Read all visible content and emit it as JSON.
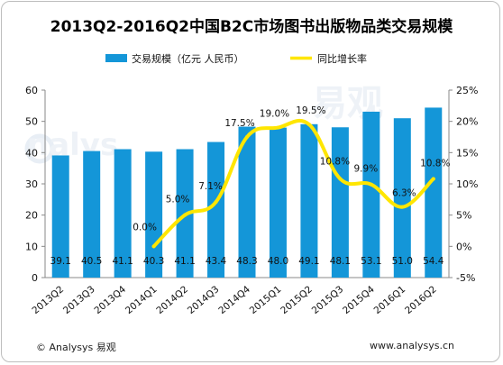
{
  "title": "2013Q2-2016Q2中国B2C市场图书出版物品类交易规模",
  "footer": {
    "copyright": "© Analysys 易观",
    "website": "www.analysys.cn"
  },
  "watermark": {
    "brand": "易观",
    "logo_text": "nalys"
  },
  "colors": {
    "bar": "#1496d8",
    "line": "#ffe600",
    "axis": "#888888"
  },
  "chart_data": {
    "type": "bar",
    "categories": [
      "2013Q2",
      "2013Q3",
      "2013Q4",
      "2014Q1",
      "2014Q2",
      "2014Q3",
      "2014Q4",
      "2015Q1",
      "2015Q2",
      "2015Q3",
      "2015Q4",
      "2016Q1",
      "2016Q2"
    ],
    "series": [
      {
        "name": "交易规模（亿元 人民币）",
        "type": "bar",
        "axis": "left",
        "values": [
          39.1,
          40.5,
          41.1,
          40.3,
          41.1,
          43.4,
          48.3,
          48.0,
          49.1,
          48.1,
          53.1,
          51.0,
          54.4
        ],
        "labels": [
          "39.1",
          "40.5",
          "41.1",
          "40.3",
          "41.1",
          "43.4",
          "48.3",
          "48.0",
          "49.1",
          "48.1",
          "53.1",
          "51.0",
          "54.4"
        ]
      },
      {
        "name": "同比增长率",
        "type": "line",
        "axis": "right",
        "values": [
          null,
          null,
          null,
          0.0,
          5.0,
          7.1,
          17.5,
          19.0,
          19.5,
          10.8,
          9.9,
          6.3,
          10.8
        ],
        "labels": [
          null,
          null,
          null,
          "0.0%",
          "5.0%",
          "7.1%",
          "17.5%",
          "19.0%",
          "19.5%",
          "10.8%",
          "9.9%",
          "6.3%",
          "10.8%"
        ]
      }
    ],
    "y_left": {
      "min": 0,
      "max": 60,
      "ticks": [
        0,
        10,
        20,
        30,
        40,
        50,
        60
      ],
      "tick_labels": [
        "0",
        "10",
        "20",
        "30",
        "40",
        "50",
        "60"
      ]
    },
    "y_right": {
      "min": -5,
      "max": 25,
      "ticks": [
        -5,
        0,
        5,
        10,
        15,
        20,
        25
      ],
      "tick_labels": [
        "-5%",
        "0%",
        "5%",
        "10%",
        "15%",
        "20%",
        "25%"
      ]
    },
    "legend_position": "top",
    "grid": false
  }
}
